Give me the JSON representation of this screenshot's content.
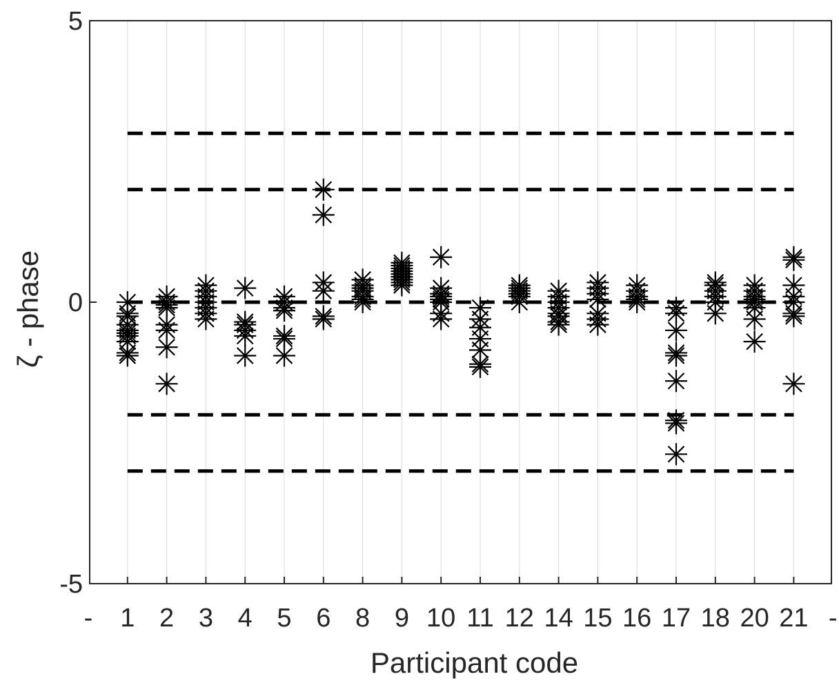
{
  "chart_data": {
    "type": "scatter",
    "title": "",
    "xlabel": "Participant code",
    "ylabel": "ζ - phase",
    "ylim": [
      -5,
      5
    ],
    "yticks": [
      -5,
      0,
      5
    ],
    "categories": [
      "-",
      "1",
      "2",
      "3",
      "4",
      "5",
      "6",
      "8",
      "9",
      "10",
      "11",
      "12",
      "14",
      "15",
      "16",
      "17",
      "18",
      "20",
      "21",
      "-"
    ],
    "grid": "vertical",
    "marker": "asterisk",
    "reference_lines": [
      {
        "y": 3,
        "style": "dashed"
      },
      {
        "y": 2,
        "style": "dashed"
      },
      {
        "y": 0,
        "style": "dashed"
      },
      {
        "y": -2,
        "style": "dashed"
      },
      {
        "y": -3,
        "style": "dashed"
      }
    ],
    "reference_x_range": [
      "1",
      "21"
    ],
    "points": [
      {
        "participant": "1",
        "values": [
          0.0,
          -0.2,
          -0.25,
          -0.4,
          -0.5,
          -0.55,
          -0.6,
          -0.7,
          -0.9,
          -0.95
        ]
      },
      {
        "participant": "2",
        "values": [
          0.1,
          0.0,
          -0.05,
          -0.1,
          -0.4,
          -0.5,
          -0.8,
          -1.45
        ]
      },
      {
        "participant": "3",
        "values": [
          0.3,
          0.2,
          0.1,
          0.0,
          -0.1,
          -0.2,
          -0.3
        ]
      },
      {
        "participant": "4",
        "values": [
          0.25,
          -0.35,
          -0.4,
          -0.5,
          -0.6,
          -0.95
        ]
      },
      {
        "participant": "5",
        "values": [
          0.1,
          0.0,
          -0.1,
          -0.15,
          -0.6,
          -0.65,
          -0.95
        ]
      },
      {
        "participant": "6",
        "values": [
          2.0,
          1.55,
          0.35,
          0.2,
          -0.25,
          -0.3
        ]
      },
      {
        "participant": "8",
        "values": [
          0.4,
          0.3,
          0.25,
          0.2,
          0.1,
          0.05,
          0.0
        ]
      },
      {
        "participant": "9",
        "values": [
          0.7,
          0.65,
          0.6,
          0.55,
          0.5,
          0.45,
          0.4,
          0.35,
          0.3
        ]
      },
      {
        "participant": "10",
        "values": [
          0.8,
          0.25,
          0.15,
          0.1,
          0.05,
          0.0,
          -0.2,
          -0.3
        ]
      },
      {
        "participant": "11",
        "values": [
          -0.1,
          -0.3,
          -0.45,
          -0.65,
          -0.85,
          -1.1,
          -1.15
        ]
      },
      {
        "participant": "12",
        "values": [
          0.3,
          0.25,
          0.2,
          0.15,
          0.1,
          0.0
        ]
      },
      {
        "participant": "14",
        "values": [
          0.2,
          0.1,
          0.0,
          -0.1,
          -0.2,
          -0.25,
          -0.35,
          -0.4
        ]
      },
      {
        "participant": "15",
        "values": [
          0.35,
          0.25,
          0.15,
          0.05,
          -0.2,
          -0.3,
          -0.4
        ]
      },
      {
        "participant": "16",
        "values": [
          0.3,
          0.2,
          0.1,
          0.05,
          0.0
        ]
      },
      {
        "participant": "17",
        "values": [
          -0.1,
          -0.2,
          -0.5,
          -0.9,
          -0.95,
          -1.4,
          -2.1,
          -2.15,
          -2.7
        ]
      },
      {
        "participant": "18",
        "values": [
          0.35,
          0.3,
          0.2,
          0.1,
          0.0,
          -0.2
        ]
      },
      {
        "participant": "20",
        "values": [
          0.3,
          0.2,
          0.1,
          0.05,
          0.0,
          -0.1,
          -0.3,
          -0.7
        ]
      },
      {
        "participant": "21",
        "values": [
          0.8,
          0.75,
          0.3,
          0.1,
          0.0,
          -0.2,
          -0.25,
          -1.45
        ]
      }
    ],
    "colors": {
      "marker": "#000000",
      "reference_line": "#000000",
      "axis": "#262626",
      "grid": "#dfdfdf",
      "background": "#ffffff"
    }
  }
}
